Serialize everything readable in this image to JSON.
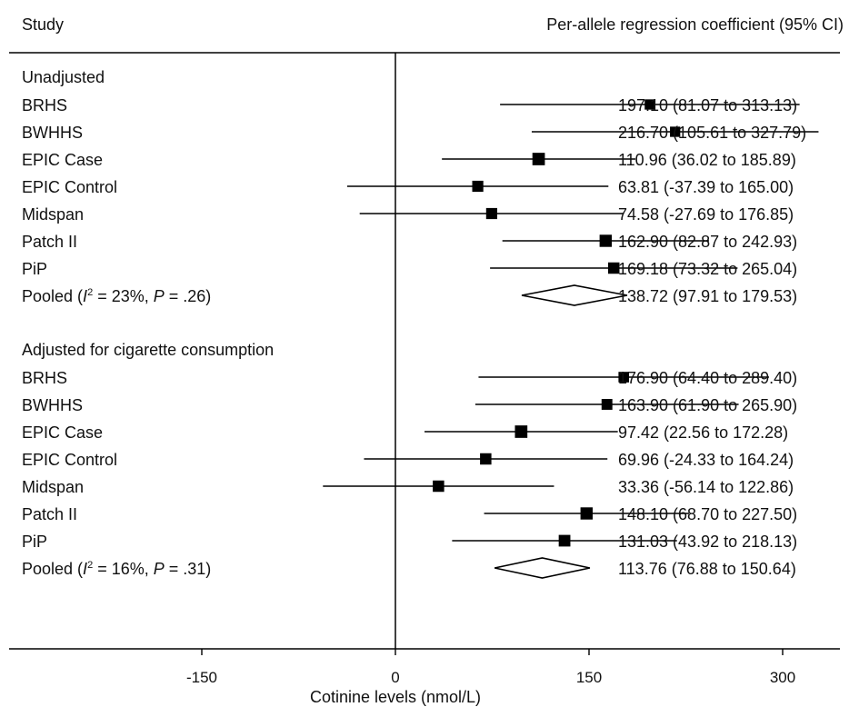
{
  "chart_data": {
    "type": "forest",
    "header_left": "Study",
    "header_right": "Per-allele regression coefficient (95% CI)",
    "xlabel": "Cotinine levels (nmol/L)",
    "xlim": [
      -300,
      700
    ],
    "xticks": [
      "-150",
      "0",
      "150",
      "300"
    ],
    "reference_line": 0,
    "groups": [
      {
        "title": "Unadjusted",
        "studies": [
          {
            "name": "BRHS",
            "estimate": 197.1,
            "lower": 81.07,
            "upper": 313.13,
            "ci_text": "197.10 (81.07 to 313.13)",
            "weight": 0.55
          },
          {
            "name": "BWHHS",
            "estimate": 216.7,
            "lower": 105.61,
            "upper": 327.79,
            "ci_text": "216.70 (105.61 to 327.79)",
            "weight": 0.55
          },
          {
            "name": "EPIC Case",
            "estimate": 110.96,
            "lower": 36.02,
            "upper": 185.89,
            "ci_text": "110.96 (36.02 to 185.89)",
            "weight": 0.95
          },
          {
            "name": "EPIC  Control",
            "estimate": 63.81,
            "lower": -37.39,
            "upper": 165.0,
            "ci_text": "63.81 (-37.39 to 165.00)",
            "weight": 0.7
          },
          {
            "name": "Midspan",
            "estimate": 74.58,
            "lower": -27.69,
            "upper": 176.85,
            "ci_text": "74.58 (-27.69 to 176.85)",
            "weight": 0.7
          },
          {
            "name": "Patch II",
            "estimate": 162.9,
            "lower": 82.87,
            "upper": 242.93,
            "ci_text": "162.90 (82.87 to 242.93)",
            "weight": 0.9
          },
          {
            "name": "PiP",
            "estimate": 169.18,
            "lower": 73.32,
            "upper": 265.04,
            "ci_text": "169.18 (73.32 to 265.04)",
            "weight": 0.75
          }
        ],
        "pooled": {
          "label_prefix": "Pooled (",
          "i_symbol": "I",
          "sup": "2",
          "i2_text": " = 23%, ",
          "p_symbol": "P",
          "p_text": " = .26)",
          "estimate": 138.72,
          "lower": 97.91,
          "upper": 179.53,
          "ci_text": "138.72 (97.91 to 179.53)"
        }
      },
      {
        "title": "Adjusted for cigarette consumption",
        "studies": [
          {
            "name": "BRHS",
            "estimate": 176.9,
            "lower": 64.4,
            "upper": 289.4,
            "ci_text": "176.90 (64.40 to 289.40)",
            "weight": 0.6
          },
          {
            "name": "BWHHS",
            "estimate": 163.9,
            "lower": 61.9,
            "upper": 265.9,
            "ci_text": "163.90 (61.90 to 265.90)",
            "weight": 0.65
          },
          {
            "name": "EPIC Case",
            "estimate": 97.42,
            "lower": 22.56,
            "upper": 172.28,
            "ci_text": "97.42 (22.56 to 172.28)",
            "weight": 0.95
          },
          {
            "name": "EPIC  Control",
            "estimate": 69.96,
            "lower": -24.33,
            "upper": 164.24,
            "ci_text": "69.96 (-24.33 to 164.24)",
            "weight": 0.75
          },
          {
            "name": "Midspan",
            "estimate": 33.36,
            "lower": -56.14,
            "upper": 122.86,
            "ci_text": "33.36 (-56.14 to 122.86)",
            "weight": 0.75
          },
          {
            "name": "Patch II",
            "estimate": 148.1,
            "lower": 68.7,
            "upper": 227.5,
            "ci_text": "148.10 (68.70 to 227.50)",
            "weight": 0.9
          },
          {
            "name": "PiP",
            "estimate": 131.03,
            "lower": 43.92,
            "upper": 218.13,
            "ci_text": "131.03 (43.92 to 218.13)",
            "weight": 0.8
          }
        ],
        "pooled": {
          "label_prefix": "Pooled (",
          "i_symbol": "I",
          "sup": "2",
          "i2_text": " = 16%, ",
          "p_symbol": "P",
          "p_text": " = .31)",
          "estimate": 113.76,
          "lower": 76.88,
          "upper": 150.64,
          "ci_text": "113.76 (76.88 to 150.64)"
        }
      }
    ]
  }
}
